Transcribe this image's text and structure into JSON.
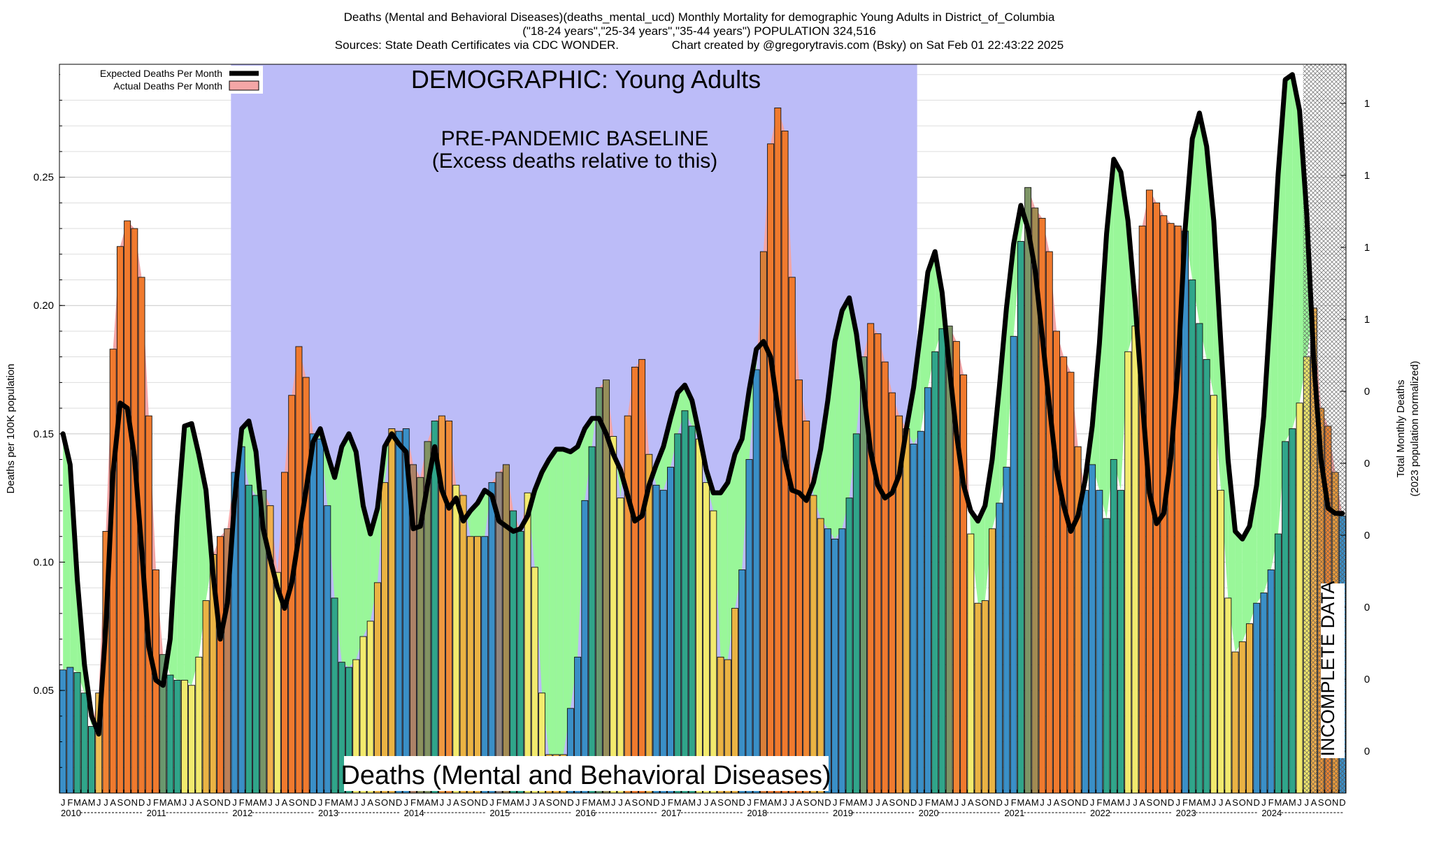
{
  "chart_data": {
    "type": "bar",
    "title_lines": [
      "Deaths (Mental and Behavioral Diseases)(deaths_mental_ucd) Monthly Mortality for demographic Young Adults in District_of_Columbia",
      "(\"18-24 years\",\"25-34 years\",\"35-44 years\") POPULATION 324,516",
      "Sources: State Death Certificates via CDC WONDER.                Chart created by @gregorytravis.com (Bsky) on Sat Feb 01 22:43:22 2025"
    ],
    "ylabel": "Deaths per 100K population",
    "y2label_lines": [
      "Total Monthly Deaths",
      "(2023 population normalized)"
    ],
    "ylim": [
      0.01,
      0.294
    ],
    "yticks": [
      "0.05",
      "0.10",
      "0.15",
      "0.20",
      "0.25"
    ],
    "y2ticks": [
      "1",
      "1",
      "1",
      "1",
      "0",
      "0",
      "0",
      "0",
      "0",
      "0"
    ],
    "legend": {
      "position": "top-left",
      "entries": [
        {
          "label": "Expected Deaths Per Month",
          "color": "#000000"
        },
        {
          "label": "Actual Deaths Per Month",
          "color": "#f4a6a6"
        }
      ]
    },
    "annotations": {
      "demographic": "DEMOGRAPHIC: Young Adults",
      "baseline": [
        "PRE-PANDEMIC BASELINE",
        "(Excess deaths relative to this)"
      ],
      "incomplete": "INCOMPLETE DATA",
      "cause": "Deaths (Mental and Behavioral Diseases)"
    },
    "baseline_period": {
      "start": "2012-01",
      "end": "2019-12"
    },
    "incomplete_period": {
      "start": "2024-07",
      "end": "2024-12"
    },
    "month_letters": [
      "J",
      "F",
      "M",
      "A",
      "M",
      "J",
      "J",
      "A",
      "S",
      "O",
      "N",
      "D"
    ],
    "years": [
      "2010",
      "2011",
      "2012",
      "2013",
      "2014",
      "2015",
      "2016",
      "2017",
      "2018",
      "2019",
      "2020",
      "2021",
      "2022",
      "2023",
      "2024"
    ],
    "season_colors": {
      "winter": "#3a8fc7",
      "spring": "#30a58a",
      "summer": "#f2ea6e",
      "autumn": "#eab344",
      "excess": "#f07a2e",
      "expected_fill_above": "#99f799",
      "actual_fill_above": "#f4a6a6"
    },
    "actual": [
      0.058,
      0.059,
      0.057,
      0.049,
      0.036,
      0.049,
      0.112,
      0.183,
      0.223,
      0.233,
      0.23,
      0.211,
      0.157,
      0.097,
      0.064,
      0.056,
      0.054,
      0.054,
      0.052,
      0.063,
      0.085,
      0.103,
      0.11,
      0.113,
      0.135,
      0.145,
      0.13,
      0.126,
      0.128,
      0.122,
      0.096,
      0.135,
      0.165,
      0.184,
      0.172,
      0.15,
      0.148,
      0.122,
      0.086,
      0.061,
      0.059,
      0.062,
      0.071,
      0.077,
      0.092,
      0.131,
      0.152,
      0.151,
      0.152,
      0.138,
      0.133,
      0.147,
      0.155,
      0.157,
      0.155,
      0.13,
      0.126,
      0.11,
      0.11,
      0.11,
      0.131,
      0.135,
      0.138,
      0.12,
      0.112,
      0.127,
      0.098,
      0.049,
      0.025,
      0.025,
      0.025,
      0.043,
      0.063,
      0.124,
      0.145,
      0.168,
      0.171,
      0.149,
      0.125,
      0.157,
      0.176,
      0.179,
      0.142,
      0.13,
      0.128,
      0.137,
      0.15,
      0.159,
      0.153,
      0.148,
      0.131,
      0.12,
      0.063,
      0.062,
      0.082,
      0.097,
      0.14,
      0.175,
      0.221,
      0.263,
      0.277,
      0.268,
      0.211,
      0.171,
      0.155,
      0.126,
      0.117,
      0.113,
      0.109,
      0.113,
      0.125,
      0.15,
      0.18,
      0.193,
      0.189,
      0.178,
      0.166,
      0.157,
      0.152,
      0.146,
      0.151,
      0.168,
      0.182,
      0.191,
      0.192,
      0.186,
      0.173,
      0.111,
      0.084,
      0.085,
      0.113,
      0.123,
      0.137,
      0.188,
      0.225,
      0.246,
      0.238,
      0.234,
      0.221,
      0.19,
      0.18,
      0.174,
      0.145,
      0.128,
      0.138,
      0.128,
      0.117,
      0.14,
      0.128,
      0.182,
      0.192,
      0.231,
      0.245,
      0.24,
      0.235,
      0.232,
      0.231,
      0.229,
      0.21,
      0.193,
      0.179,
      0.165,
      0.128,
      0.086,
      0.065,
      0.069,
      0.076,
      0.084,
      0.088,
      0.097,
      0.111,
      0.147,
      0.152,
      0.162,
      0.18,
      0.199,
      0.16,
      0.153,
      0.135,
      0.118
    ],
    "expected": [
      0.15,
      0.138,
      0.093,
      0.06,
      0.04,
      0.033,
      0.075,
      0.135,
      0.162,
      0.16,
      0.141,
      0.105,
      0.067,
      0.054,
      0.052,
      0.07,
      0.118,
      0.153,
      0.154,
      0.142,
      0.128,
      0.095,
      0.07,
      0.084,
      0.124,
      0.152,
      0.155,
      0.143,
      0.113,
      0.101,
      0.09,
      0.082,
      0.092,
      0.11,
      0.128,
      0.147,
      0.152,
      0.142,
      0.133,
      0.145,
      0.15,
      0.143,
      0.122,
      0.111,
      0.121,
      0.145,
      0.15,
      0.146,
      0.143,
      0.113,
      0.114,
      0.13,
      0.145,
      0.128,
      0.121,
      0.125,
      0.116,
      0.12,
      0.123,
      0.128,
      0.126,
      0.116,
      0.114,
      0.112,
      0.113,
      0.118,
      0.128,
      0.135,
      0.14,
      0.144,
      0.144,
      0.143,
      0.145,
      0.152,
      0.156,
      0.156,
      0.15,
      0.142,
      0.136,
      0.126,
      0.116,
      0.118,
      0.13,
      0.138,
      0.145,
      0.156,
      0.166,
      0.169,
      0.163,
      0.15,
      0.136,
      0.127,
      0.127,
      0.131,
      0.142,
      0.148,
      0.167,
      0.183,
      0.186,
      0.18,
      0.16,
      0.14,
      0.128,
      0.127,
      0.124,
      0.131,
      0.144,
      0.163,
      0.186,
      0.198,
      0.203,
      0.189,
      0.167,
      0.143,
      0.13,
      0.125,
      0.127,
      0.134,
      0.152,
      0.168,
      0.19,
      0.213,
      0.221,
      0.205,
      0.176,
      0.15,
      0.13,
      0.12,
      0.116,
      0.122,
      0.14,
      0.168,
      0.199,
      0.224,
      0.239,
      0.23,
      0.214,
      0.188,
      0.161,
      0.136,
      0.122,
      0.112,
      0.118,
      0.132,
      0.153,
      0.185,
      0.228,
      0.257,
      0.252,
      0.233,
      0.201,
      0.163,
      0.127,
      0.115,
      0.119,
      0.141,
      0.176,
      0.23,
      0.265,
      0.275,
      0.262,
      0.233,
      0.185,
      0.14,
      0.112,
      0.109,
      0.114,
      0.13,
      0.157,
      0.202,
      0.251,
      0.288,
      0.29,
      0.276,
      0.236,
      0.178,
      0.14,
      0.121,
      0.119,
      0.119
    ]
  }
}
